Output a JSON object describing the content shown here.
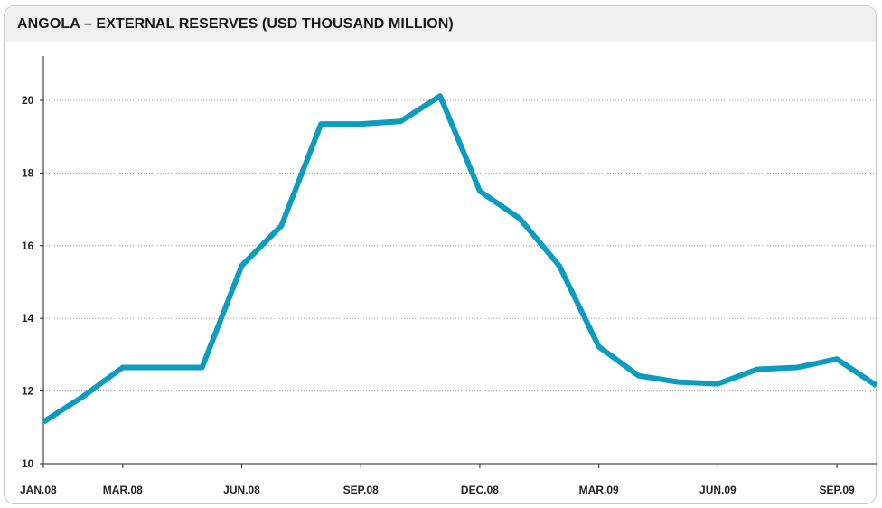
{
  "chart_data": {
    "type": "line",
    "title": "ANGOLA – EXTERNAL RESERVES (USD THOUSAND MILLION)",
    "xlabel": "",
    "ylabel": "",
    "ylim": [
      10,
      21
    ],
    "yticks": [
      10,
      12,
      14,
      16,
      18,
      20
    ],
    "x": [
      "JAN.08",
      "FEB.08",
      "MAR.08",
      "APR.08",
      "MAY.08",
      "JUN.08",
      "JUL.08",
      "AUG.08",
      "SEP.08",
      "OCT.08",
      "NOV.08",
      "DEC.08",
      "JAN.09",
      "FEB.09",
      "MAR.09",
      "APR.09",
      "MAY.09",
      "JUN.09",
      "JUL.09",
      "AUG.09",
      "SEP.09",
      "OCT.09"
    ],
    "xtick_labels": [
      "JAN.08",
      "MAR.08",
      "JUN.08",
      "SEP.08",
      "DEC.08",
      "MAR.09",
      "JUN.09",
      "SEP.09"
    ],
    "series": [
      {
        "values": [
          11.15,
          11.85,
          12.65,
          12.65,
          12.65,
          15.45,
          16.55,
          19.35,
          19.35,
          19.42,
          20.12,
          17.5,
          16.75,
          15.45,
          13.22,
          12.42,
          12.25,
          12.2,
          12.6,
          12.65,
          12.88,
          12.15
        ],
        "color": "#0c9cc0"
      }
    ],
    "grid": true,
    "grid_style": "dotted",
    "legend": "none"
  }
}
